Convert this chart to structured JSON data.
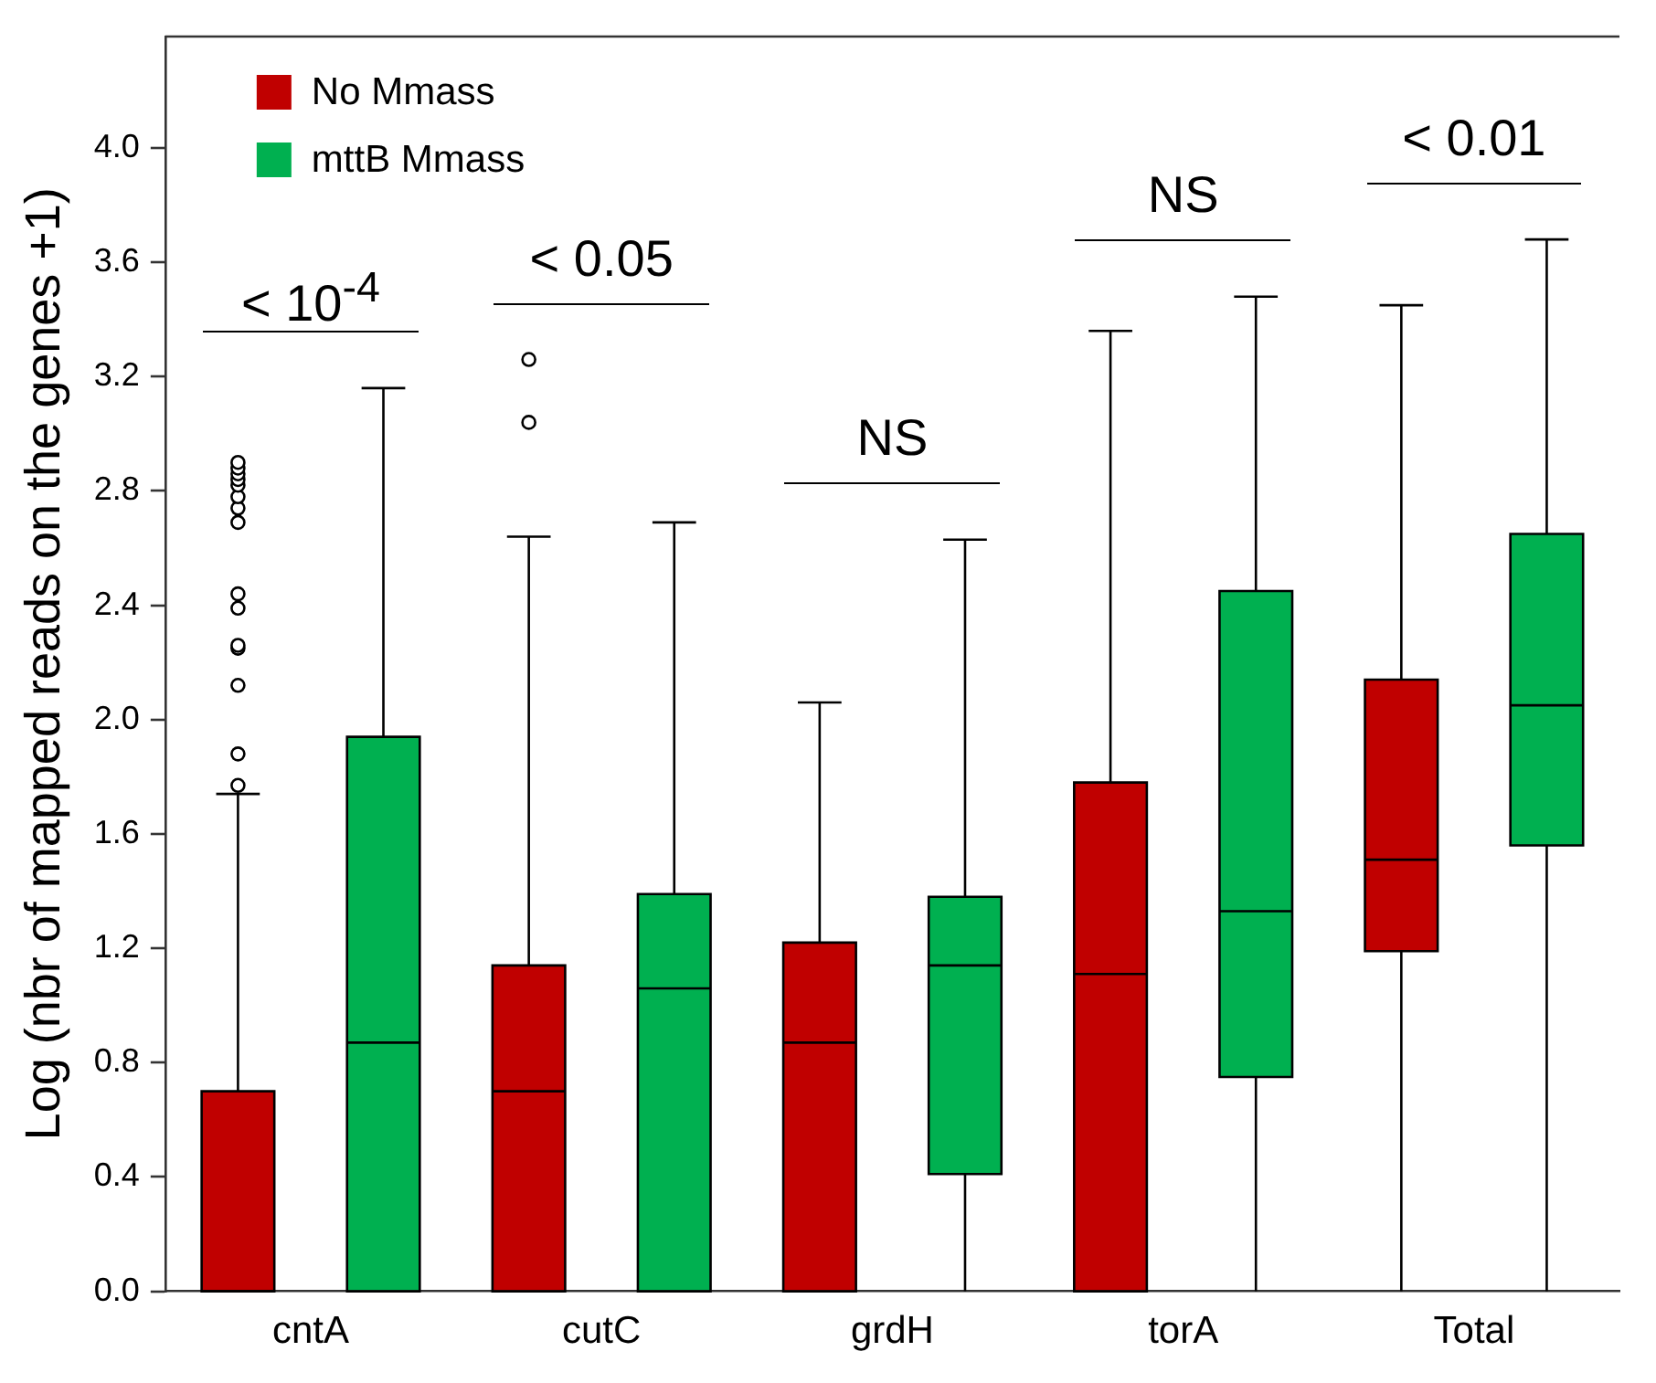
{
  "chart_data": {
    "type": "box",
    "ylabel": "Log (nbr of mapped reads on the genes +1)",
    "categories": [
      "cntA",
      "cutC",
      "grdH",
      "torA",
      "Total"
    ],
    "ylim": [
      0,
      4.39
    ],
    "yticks": [
      {
        "value": 0,
        "label": "0.0"
      },
      {
        "value": 0.4,
        "label": "0.4"
      },
      {
        "value": 0.8,
        "label": "0.8"
      },
      {
        "value": 1.2,
        "label": "1.2"
      },
      {
        "value": 1.6,
        "label": "1.6"
      },
      {
        "value": 2.0,
        "label": "2.0"
      },
      {
        "value": 2.4,
        "label": "2.4"
      },
      {
        "value": 2.8,
        "label": "2.8"
      },
      {
        "value": 3.2,
        "label": "3.2"
      },
      {
        "value": 3.6,
        "label": "3.6"
      },
      {
        "value": 4.0,
        "label": "4.0"
      }
    ],
    "legend": "top left",
    "grid": false,
    "series": [
      {
        "name": "No Mmass",
        "color": "#c00000",
        "boxes": [
          {
            "low": 0,
            "q1": 0,
            "median": 0,
            "q3": 0.7,
            "high": 1.74,
            "outliers": [
              1.77,
              1.88,
              2.12,
              2.25,
              2.26,
              2.39,
              2.44,
              2.69,
              2.74,
              2.78,
              2.82,
              2.84,
              2.86,
              2.88,
              2.9
            ]
          },
          {
            "low": 0,
            "q1": 0,
            "median": 0.7,
            "q3": 1.14,
            "high": 2.64,
            "outliers": [
              3.04,
              3.26
            ]
          },
          {
            "low": 0,
            "q1": 0,
            "median": 0.87,
            "q3": 1.22,
            "high": 2.06
          },
          {
            "low": 0,
            "q1": 0,
            "median": 1.11,
            "q3": 1.78,
            "high": 3.36
          },
          {
            "low": 0,
            "q1": 1.19,
            "median": 1.51,
            "q3": 2.14,
            "high": 3.45
          }
        ]
      },
      {
        "name": "mttB Mmass",
        "color": "#00b050",
        "boxes": [
          {
            "low": 0,
            "q1": 0,
            "median": 0.87,
            "q3": 1.94,
            "high": 3.16
          },
          {
            "low": 0,
            "q1": 0,
            "median": 1.06,
            "q3": 1.39,
            "high": 2.69
          },
          {
            "low": 0,
            "q1": 0.41,
            "median": 1.14,
            "q3": 1.38,
            "high": 2.63
          },
          {
            "low": 0,
            "q1": 0.75,
            "median": 1.33,
            "q3": 2.45,
            "high": 3.48
          },
          {
            "low": 0,
            "q1": 1.56,
            "median": 2.05,
            "q3": 2.65,
            "high": 3.68
          }
        ]
      }
    ],
    "annotations": [
      "< 10$^{-4}$",
      "< 0.05",
      "NS",
      "NS",
      "< 0.01"
    ]
  }
}
